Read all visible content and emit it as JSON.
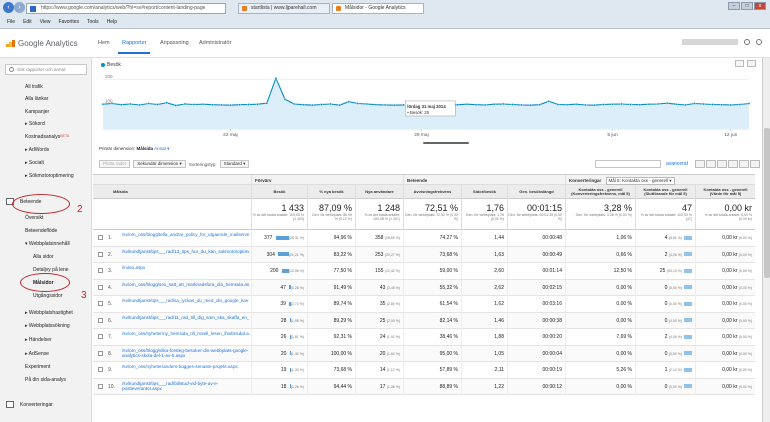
{
  "browser": {
    "address": "https://www.google.com/analytics/web/?hl=sv#report/content-landing-page",
    "tabs": [
      {
        "label": "startlista | www.ljparehall.com"
      },
      {
        "label": "Målsidor - Google Analytics"
      }
    ],
    "menu": [
      "File",
      "Edit",
      "View",
      "Favorites",
      "Tools",
      "Help"
    ],
    "window_buttons": [
      "–",
      "□",
      "x"
    ]
  },
  "ga": {
    "logo_text": "Google Analytics",
    "tabs": [
      "Hem",
      "Rapporter",
      "Anpassning",
      "Administratör"
    ],
    "active_tab": "Rapporter"
  },
  "sidebar": {
    "search_placeholder": "Sök rapporter och annat",
    "items": [
      {
        "label": "All trafik"
      },
      {
        "label": "Alla länkar"
      },
      {
        "label": "Kampanjer"
      },
      {
        "label": "▸ Sökord"
      },
      {
        "label": "Kostnadsanalys",
        "sup": "BETA"
      },
      {
        "label": "▸ AdWords"
      },
      {
        "label": "▸ Socialt"
      },
      {
        "label": "▸ Sökmotoroptimering"
      },
      {
        "label": "Beteende"
      },
      {
        "label": "Översikt"
      },
      {
        "label": "Beteendeflöde"
      },
      {
        "label": "▾ Webbplatsinnehåll"
      },
      {
        "label": "Alla sidor"
      },
      {
        "label": "Detaljvy på lene"
      },
      {
        "label": "Målsidor"
      },
      {
        "label": "Utgångssidor"
      },
      {
        "label": "▸ Webbplatshastighet"
      },
      {
        "label": "▸ Webbplatssökning"
      },
      {
        "label": "▸ Händelser"
      },
      {
        "label": "▸ AdSense"
      },
      {
        "label": "Experiment"
      },
      {
        "label": "På din sida-analys"
      },
      {
        "label": "Konverteringar"
      }
    ],
    "annotations": [
      "2",
      "3"
    ]
  },
  "chart_data": {
    "type": "line",
    "series": [
      {
        "name": "Besök",
        "values": [
          100,
          103,
          98,
          101,
          97,
          103,
          99,
          106,
          95,
          101,
          99,
          100,
          98,
          97,
          96,
          98,
          99,
          100,
          104,
          205,
          120,
          101,
          98,
          96,
          99,
          101,
          96,
          110,
          103,
          101,
          98,
          97,
          96,
          97,
          96,
          101,
          99,
          102,
          99,
          98,
          100,
          98,
          97,
          100,
          101,
          99,
          97,
          96,
          98,
          112,
          99,
          98,
          100,
          97,
          96,
          99,
          100,
          101,
          99,
          98,
          100,
          101,
          104,
          100,
          97,
          103,
          101,
          99,
          98,
          97,
          99,
          103
        ]
      }
    ],
    "xtick_labels": [
      "22 maj",
      "29 maj",
      "5 jun",
      "12 jun"
    ],
    "yticks": [
      100,
      200
    ],
    "ylim": [
      0,
      230
    ],
    "tooltip": {
      "title": "lördag 31 maj 2014",
      "line": "• Besök: 25"
    },
    "grid": true,
    "legend": "top-left"
  },
  "controls": {
    "primary_label": "Primär dimension:",
    "primary_value": "Målsida",
    "primary_other": "Annat ▾",
    "plot_rows": "Plotta rader",
    "secondary": "Sekundär dimension ▾",
    "sort_label": "Sorteringstyp:",
    "sort_value": "Standard ▾",
    "advanced": "avancerat"
  },
  "table": {
    "groups": {
      "forvarv": "Förvärv",
      "beteende": "Beteende",
      "konverteringar": "Konverteringar",
      "goal_select": "Mål 5: Kontakta oss - generell ▾"
    },
    "headers": [
      "Målsida",
      "Besök",
      "% nya besök",
      "Nya användare",
      "Avvisningsfrekvens",
      "Sidor/besök",
      "Gen. besökslängd",
      "Kontakta oss - generell (Konverteringsfrekvens, mål 5)",
      "Kontakta oss - generell (Slutförande för mål 5)",
      "Kontakta oss - generell (Värde för mål 5)"
    ],
    "summary": [
      {
        "big": "1 433",
        "sub": "% av det totala antalet: 100,00 % (1 433)"
      },
      {
        "big": "87,09 %",
        "sub": "Gen. för webbplats: 86,99 % (0,12 %)"
      },
      {
        "big": "1 248",
        "sub": "% av det totala antalet: 100,08 % (1 247)"
      },
      {
        "big": "72,51 %",
        "sub": "Gen. för webbplats: 72,51 % (0,00 %)"
      },
      {
        "big": "1,76",
        "sub": "Gen. för webbplats: 1,76 (0,00 %)"
      },
      {
        "big": "00:01:15",
        "sub": "Gen. för webbplats: 00:01:15 (0,00 %)"
      },
      {
        "big": "3,28 %",
        "sub": "Gen. för webbplats: 3,28 % (0,00 %)"
      },
      {
        "big": "47",
        "sub": "% av det totala antalet: 100,00 % (47)"
      },
      {
        "big": "0,00 kr",
        "sub": "% av det totala antalet: 0,00 % (0,00 kr)"
      }
    ],
    "rows": [
      {
        "n": "1.",
        "page": "/sv/om_oss/blogg/tella_andrar_policy_for_utgaende_mailserver.aspx",
        "besok": "377",
        "besok_pct": "(26,31 %)",
        "nya": "94,96 %",
        "anv": "358",
        "anv_pct": "(28,69 %)",
        "avv": "74,27 %",
        "sidor": "1,44",
        "tid": "00:00:48",
        "konv": "1,06 %",
        "slut": "4",
        "slut_pct": "(8,51 %)",
        "varde": "0,00 kr",
        "varde_pct": "(0,00 %)",
        "bar": 26
      },
      {
        "n": "2.",
        "page": "/sv/kundtjanst/tips___rad/13_tips_hur_du_kan_sokmotoroptimera_sjalv.aspx",
        "besok": "304",
        "besok_pct": "(21,21 %)",
        "nya": "83,22 %",
        "anv": "253",
        "anv_pct": "(20,27 %)",
        "avv": "73,68 %",
        "sidor": "1,63",
        "tid": "00:00:49",
        "konv": "0,66 %",
        "slut": "2",
        "slut_pct": "(4,26 %)",
        "varde": "0,00 kr",
        "varde_pct": "(0,00 %)",
        "bar": 21
      },
      {
        "n": "3.",
        "page": "/index.aspx",
        "besok": "200",
        "besok_pct": "(13,96 %)",
        "nya": "77,50 %",
        "anv": "155",
        "anv_pct": "(12,42 %)",
        "avv": "59,00 %",
        "sidor": "2,60",
        "tid": "00:01:14",
        "konv": "12,50 %",
        "slut": "25",
        "slut_pct": "(53,19 %)",
        "varde": "0,00 kr",
        "varde_pct": "(0,00 %)",
        "bar": 14
      },
      {
        "n": "4.",
        "page": "/sv/om_oss/blogg/sex_satt_att_marknadsfora_din_hemsida.aspx",
        "besok": "47",
        "besok_pct": "(3,28 %)",
        "nya": "91,49 %",
        "anv": "43",
        "anv_pct": "(3,45 %)",
        "avv": "55,32 %",
        "sidor": "2,62",
        "tid": "00:02:15",
        "konv": "0,00 %",
        "slut": "0",
        "slut_pct": "(0,00 %)",
        "varde": "0,00 kr",
        "varde_pct": "(0,00 %)",
        "bar": 3
      },
      {
        "n": "5.",
        "page": "/sv/kundtjanst/tips___rad/sa_lyckas_du_med_din_google_kampanj.aspx",
        "besok": "39",
        "besok_pct": "(2,72 %)",
        "nya": "89,74 %",
        "anv": "35",
        "anv_pct": "(2,80 %)",
        "avv": "61,54 %",
        "sidor": "1,62",
        "tid": "00:03:16",
        "konv": "0,00 %",
        "slut": "0",
        "slut_pct": "(0,00 %)",
        "varde": "0,00 kr",
        "varde_pct": "(0,00 %)",
        "bar": 3
      },
      {
        "n": "6.",
        "page": "/sv/kundtjanst/tips___rad/11_rad_till_dig_som_ska_skaffa_en_webbplats.aspx",
        "besok": "28",
        "besok_pct": "(1,95 %)",
        "nya": "89,29 %",
        "anv": "25",
        "anv_pct": "(2,00 %)",
        "avv": "82,14 %",
        "sidor": "1,46",
        "tid": "00:00:38",
        "konv": "0,00 %",
        "slut": "0",
        "slut_pct": "(0,00 %)",
        "varde": "0,00 kr",
        "varde_pct": "(0,00 %)",
        "bar": 2
      },
      {
        "n": "7.",
        "page": "/sv/om_oss/nyheter/ny_hemsida_till_hotell_lesen_lhallmsdal.aspx",
        "besok": "26",
        "besok_pct": "(1,81 %)",
        "nya": "92,31 %",
        "anv": "24",
        "anv_pct": "(1,92 %)",
        "avv": "38,46 %",
        "sidor": "1,88",
        "tid": "00:00:20",
        "konv": "7,69 %",
        "slut": "2",
        "slut_pct": "(4,26 %)",
        "varde": "0,00 kr",
        "varde_pct": "(0,00 %)",
        "bar": 2
      },
      {
        "n": "8.",
        "page": "/sv/om_oss/blogg/vilka-forsteg-besoker-din-webbplats-google-analytics-skola-del-1-av-5.aspx",
        "besok": "20",
        "besok_pct": "(1,40 %)",
        "nya": "100,00 %",
        "anv": "20",
        "anv_pct": "(1,60 %)",
        "avv": "95,00 %",
        "sidor": "1,05",
        "tid": "00:00:04",
        "konv": "0,00 %",
        "slut": "0",
        "slut_pct": "(0,00 %)",
        "varde": "0,00 kr",
        "varde_pct": "(0,00 %)",
        "bar": 1
      },
      {
        "n": "9.",
        "page": "/sv/om_oss/nyheter/anders-bagges-senaste-projekt.aspx",
        "besok": "19",
        "besok_pct": "(1,33 %)",
        "nya": "73,68 %",
        "anv": "14",
        "anv_pct": "(1,12 %)",
        "avv": "57,89 %",
        "sidor": "2,11",
        "tid": "00:00:19",
        "konv": "5,26 %",
        "slut": "1",
        "slut_pct": "(2,13 %)",
        "varde": "0,00 kr",
        "varde_pct": "(0,00 %)",
        "bar": 1
      },
      {
        "n": "10.",
        "page": "/sv/kundtjanst/tips___rad/fallstud-vid-byte-av-e-postleverantor.aspx",
        "besok": "18",
        "besok_pct": "(1,26 %)",
        "nya": "94,44 %",
        "anv": "17",
        "anv_pct": "(1,36 %)",
        "avv": "88,89 %",
        "sidor": "1,22",
        "tid": "00:00:12",
        "konv": "0,00 %",
        "slut": "0",
        "slut_pct": "(0,00 %)",
        "varde": "0,00 kr",
        "varde_pct": "(0,00 %)",
        "bar": 1
      }
    ]
  }
}
